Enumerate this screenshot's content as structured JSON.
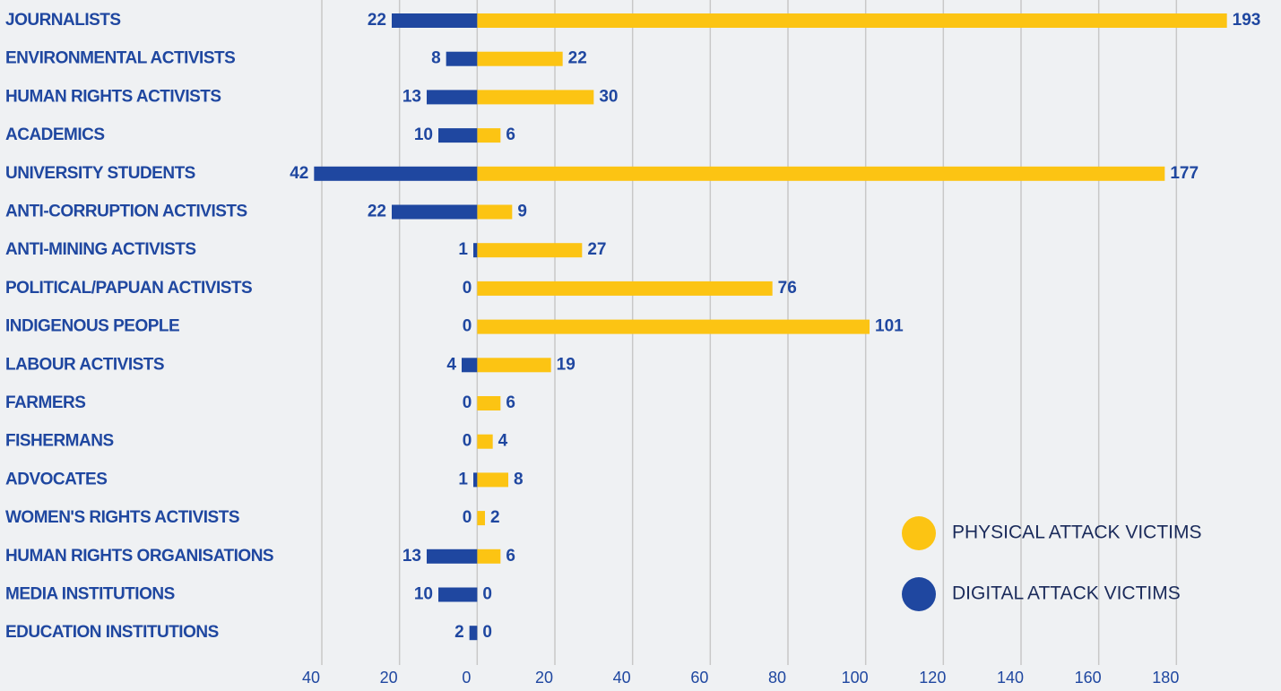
{
  "chart_data": {
    "type": "bar",
    "orientation": "horizontal",
    "categories": [
      "JOURNALISTS",
      "ENVIRONMENTAL ACTIVISTS",
      "HUMAN RIGHTS ACTIVISTS",
      "ACADEMICS",
      "UNIVERSITY STUDENTS",
      "ANTI-CORRUPTION ACTIVISTS",
      "ANTI-MINING ACTIVISTS",
      "POLITICAL/PAPUAN ACTIVISTS",
      "INDIGENOUS PEOPLE",
      "LABOUR ACTIVISTS",
      "FARMERS",
      "FISHERMANS",
      "ADVOCATES",
      "WOMEN'S RIGHTS ACTIVISTS",
      "HUMAN RIGHTS ORGANISATIONS",
      "MEDIA INSTITUTIONS",
      "EDUCATION INSTITUTIONS"
    ],
    "series": [
      {
        "name": "PHYSICAL ATTACK VICTIMS",
        "color": "#fcc413",
        "values": [
          193,
          22,
          30,
          6,
          177,
          9,
          27,
          76,
          101,
          19,
          6,
          4,
          8,
          2,
          6,
          0,
          0
        ]
      },
      {
        "name": "DIGITAL ATTACK VICTIMS",
        "color": "#1f47a0",
        "values": [
          -22,
          -8,
          -13,
          -10,
          -42,
          -22,
          -1,
          0,
          0,
          -4,
          0,
          0,
          -1,
          0,
          -13,
          -10,
          -2
        ],
        "value_labels": [
          "22",
          "8",
          "13",
          "10",
          "42",
          "22",
          "1",
          "0",
          "0",
          "4",
          "0",
          "0",
          "1",
          "0",
          "13",
          "10",
          "2"
        ]
      }
    ],
    "xlim": [
      -40,
      200
    ],
    "xticks": [
      {
        "value": -40,
        "label": "40"
      },
      {
        "value": -20,
        "label": "20"
      },
      0,
      20,
      40,
      60,
      80,
      100,
      120,
      140,
      160,
      180
    ],
    "grid": true,
    "legend": "lower right"
  }
}
